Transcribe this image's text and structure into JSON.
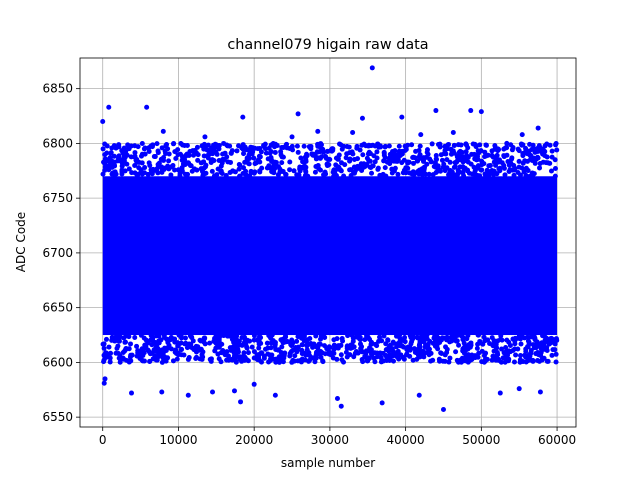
{
  "chart_data": {
    "type": "scatter",
    "title": "channel079 higain raw data",
    "xlabel": "sample number",
    "ylabel": "ADC Code",
    "xlim": [
      -3000,
      62500
    ],
    "ylim": [
      6541,
      6878
    ],
    "xticks": [
      0,
      10000,
      20000,
      30000,
      40000,
      50000,
      60000
    ],
    "yticks": [
      6550,
      6600,
      6650,
      6700,
      6750,
      6800,
      6850
    ],
    "grid": true,
    "marker_color": "#0000ff",
    "sample_count": 60000,
    "dense_band": [
      6625,
      6770
    ],
    "spread_range": [
      6600,
      6800
    ],
    "series": [
      {
        "name": "",
        "outliers": [
          {
            "x": 0,
            "y": 6820
          },
          {
            "x": 800,
            "y": 6833
          },
          {
            "x": 300,
            "y": 6585
          },
          {
            "x": 200,
            "y": 6581
          },
          {
            "x": 5800,
            "y": 6833
          },
          {
            "x": 8000,
            "y": 6811
          },
          {
            "x": 3800,
            "y": 6572
          },
          {
            "x": 7800,
            "y": 6573
          },
          {
            "x": 11300,
            "y": 6570
          },
          {
            "x": 14500,
            "y": 6573
          },
          {
            "x": 17400,
            "y": 6574
          },
          {
            "x": 18200,
            "y": 6564
          },
          {
            "x": 18500,
            "y": 6824
          },
          {
            "x": 20000,
            "y": 6580
          },
          {
            "x": 22800,
            "y": 6570
          },
          {
            "x": 25800,
            "y": 6827
          },
          {
            "x": 28400,
            "y": 6811
          },
          {
            "x": 31000,
            "y": 6567
          },
          {
            "x": 31500,
            "y": 6560
          },
          {
            "x": 34300,
            "y": 6823
          },
          {
            "x": 35600,
            "y": 6869
          },
          {
            "x": 36900,
            "y": 6563
          },
          {
            "x": 39500,
            "y": 6824
          },
          {
            "x": 41800,
            "y": 6570
          },
          {
            "x": 44000,
            "y": 6830
          },
          {
            "x": 45000,
            "y": 6557
          },
          {
            "x": 48600,
            "y": 6830
          },
          {
            "x": 50000,
            "y": 6829
          },
          {
            "x": 46300,
            "y": 6810
          },
          {
            "x": 52500,
            "y": 6572
          },
          {
            "x": 57500,
            "y": 6814
          },
          {
            "x": 57800,
            "y": 6573
          },
          {
            "x": 55000,
            "y": 6576
          },
          {
            "x": 13500,
            "y": 6806
          },
          {
            "x": 25000,
            "y": 6806
          },
          {
            "x": 33000,
            "y": 6810
          },
          {
            "x": 42000,
            "y": 6808
          },
          {
            "x": 55400,
            "y": 6808
          }
        ]
      }
    ]
  }
}
